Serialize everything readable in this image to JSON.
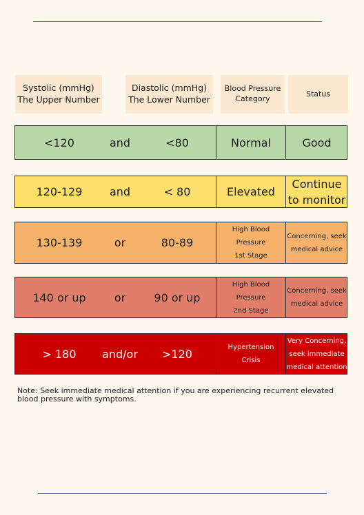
{
  "header": {
    "systolic": "Systolic (mmHg)\nThe Upper Number",
    "diastolic": "Diastolic (mmHg)\nThe Lower Number",
    "category": "Blood Pressure\nCategory",
    "status": "Status"
  },
  "rows": [
    {
      "systolic": "<120",
      "conjunction": "and",
      "diastolic": "<80",
      "category": "Normal",
      "status": "Good",
      "color": "#b8d8a8"
    },
    {
      "systolic": "120-129",
      "conjunction": "and",
      "diastolic": "< 80",
      "category": "Elevated",
      "status": "Continue\nto monitor",
      "color": "#fde06b"
    },
    {
      "systolic": "130-139",
      "conjunction": "or",
      "diastolic": "80-89",
      "category": "High Blood\nPressure\n1st Stage",
      "status": "Concerning, seek\nmedical advice",
      "color": "#f6b26b"
    },
    {
      "systolic": "140 or up",
      "conjunction": "or",
      "diastolic": "90 or up",
      "category": "High Blood\nPressure\n2nd Stage",
      "status": "Concerning, seek\nmedical advice",
      "color": "#e07e6a"
    },
    {
      "systolic": "> 180",
      "conjunction": "and/or",
      "diastolic": ">120",
      "category": "Hypertension\nCrisis",
      "status": "Very Concerning,\nseek immediate\nmedical attention",
      "color": "#cc0000"
    }
  ],
  "note": "Note: Seek immediate medical attention if you are experiencing recurrent elevated\nblood pressure with symptoms."
}
